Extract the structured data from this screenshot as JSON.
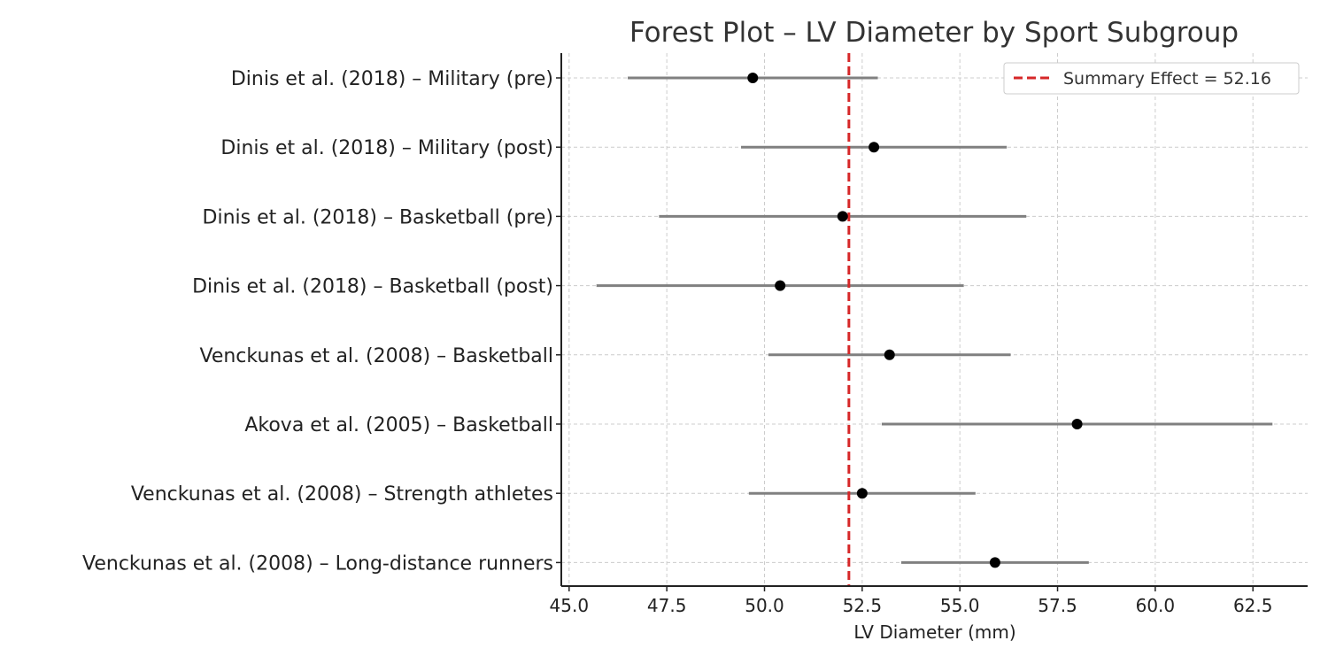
{
  "chart_data": {
    "type": "forest",
    "title": "Forest Plot – LV Diameter by Sport Subgroup",
    "xlabel": "LV Diameter (mm)",
    "ylabel": "",
    "xlim": [
      44.8,
      63.9
    ],
    "xticks": [
      45.0,
      47.5,
      50.0,
      52.5,
      55.0,
      57.5,
      60.0,
      62.5
    ],
    "xtick_labels": [
      "45.0",
      "47.5",
      "50.0",
      "52.5",
      "55.0",
      "57.5",
      "60.0",
      "62.5"
    ],
    "grid": true,
    "studies": [
      {
        "label": "Dinis et al. (2018) – Military (pre)",
        "estimate": 49.7,
        "ci_low": 46.5,
        "ci_high": 52.9
      },
      {
        "label": "Dinis et al. (2018) – Military (post)",
        "estimate": 52.8,
        "ci_low": 49.4,
        "ci_high": 56.2
      },
      {
        "label": "Dinis et al. (2018) – Basketball (pre)",
        "estimate": 52.0,
        "ci_low": 47.3,
        "ci_high": 56.7
      },
      {
        "label": "Dinis et al. (2018) – Basketball (post)",
        "estimate": 50.4,
        "ci_low": 45.7,
        "ci_high": 55.1
      },
      {
        "label": "Venckunas et al. (2008) – Basketball",
        "estimate": 53.2,
        "ci_low": 50.1,
        "ci_high": 56.3
      },
      {
        "label": "Akova et al. (2005) – Basketball",
        "estimate": 58.0,
        "ci_low": 53.0,
        "ci_high": 63.0
      },
      {
        "label": "Venckunas et al. (2008) – Strength athletes",
        "estimate": 52.5,
        "ci_low": 49.6,
        "ci_high": 55.4
      },
      {
        "label": "Venckunas et al. (2008) – Long-distance runners",
        "estimate": 55.9,
        "ci_low": 53.5,
        "ci_high": 58.3
      }
    ],
    "summary_effect": 52.16,
    "legend": {
      "label": "Summary Effect = 52.16",
      "position": "top-right"
    },
    "colors": {
      "point": "#000000",
      "ci": "#808080",
      "summary": "#d62728",
      "grid": "#cccccc",
      "axis": "#222222"
    }
  }
}
